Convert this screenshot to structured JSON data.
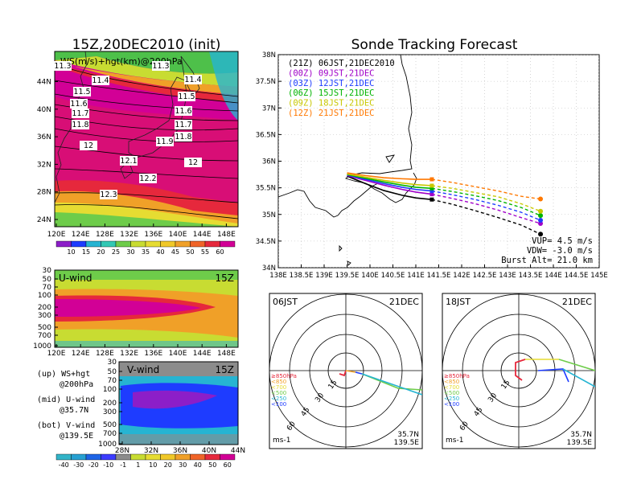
{
  "left_title": "15Z,20DEC2010 (init)",
  "right_title": "Sonde Tracking Forecast",
  "top_map": {
    "label": "WS(m/s)+hgt(km)@200hPa",
    "xticks": [
      "120E",
      "124E",
      "128E",
      "132E",
      "136E",
      "140E",
      "144E",
      "148E"
    ],
    "yticks": [
      "24N",
      "28N",
      "32N",
      "36N",
      "40N",
      "44N"
    ],
    "contour_labels": [
      "11.3",
      "11.3",
      "11.4",
      "11.4",
      "11.5",
      "11.5",
      "11.6",
      "11.6",
      "11.7",
      "11.7",
      "11.8",
      "11.8",
      "11.9",
      "12",
      "12",
      "12.1",
      "12.2",
      "12.3"
    ],
    "colorbar": [
      "10",
      "15",
      "20",
      "25",
      "30",
      "35",
      "40",
      "45",
      "50",
      "55",
      "60"
    ]
  },
  "mid_panel": {
    "label": "U-wind",
    "time": "15Z",
    "yticks": [
      "30",
      "50",
      "70",
      "100",
      "200",
      "300",
      "500",
      "700",
      "1000"
    ],
    "xticks": [
      "120E",
      "124E",
      "128E",
      "132E",
      "136E",
      "140E",
      "144E",
      "148E"
    ]
  },
  "bot_panel": {
    "label": "V-wind",
    "time": "15Z",
    "yticks": [
      "30",
      "50",
      "70",
      "100",
      "200",
      "300",
      "500",
      "700",
      "1000"
    ],
    "xticks": [
      "28N",
      "32N",
      "36N",
      "40N",
      "44N"
    ],
    "colorbar": [
      "-40",
      "-30",
      "-20",
      "-10",
      "-1",
      "1",
      "10",
      "20",
      "30",
      "40",
      "50",
      "60"
    ]
  },
  "legend_notes": [
    "(up) WS+hgt",
    "@200hPa",
    "(mid) U-wind",
    "@35.7N",
    "(bot) V-wind",
    "@139.5E"
  ],
  "chart_data": {
    "type": "line",
    "title": "Sonde Tracking Forecast",
    "xlabel": "",
    "ylabel": "",
    "xlim": [
      138.0,
      145.0
    ],
    "ylim": [
      34.0,
      38.0
    ],
    "xticks": [
      "138E",
      "138.5E",
      "139E",
      "139.5E",
      "140E",
      "140.5E",
      "141E",
      "141.5E",
      "142E",
      "142.5E",
      "143E",
      "143.5E",
      "144E",
      "144.5E",
      "145E"
    ],
    "yticks": [
      "34N",
      "34.5N",
      "35N",
      "35.5N",
      "36N",
      "36.5N",
      "37N",
      "37.5N",
      "38N"
    ],
    "series": [
      {
        "name": "(21Z) 06JST,21DEC2010",
        "color": "#000000",
        "lon": [
          139.5,
          139.9,
          140.3,
          140.7,
          141.0,
          141.35,
          141.8,
          142.3,
          142.8,
          143.3,
          143.72
        ],
        "lat": [
          35.72,
          35.58,
          35.45,
          35.36,
          35.31,
          35.28,
          35.19,
          35.07,
          34.94,
          34.8,
          34.63
        ]
      },
      {
        "name": "(00Z) 09JST,21DEC",
        "color": "#a000c8",
        "lon": [
          139.5,
          139.9,
          140.3,
          140.7,
          141.0,
          141.35,
          141.8,
          142.3,
          142.8,
          143.3,
          143.72
        ],
        "lat": [
          35.73,
          35.64,
          35.55,
          35.47,
          35.42,
          35.38,
          35.3,
          35.2,
          35.08,
          34.94,
          34.83
        ]
      },
      {
        "name": "(03Z) 12JST,21DEC",
        "color": "#1e3cff",
        "lon": [
          139.5,
          139.9,
          140.3,
          140.7,
          141.0,
          141.35,
          141.8,
          142.3,
          142.8,
          143.3,
          143.72
        ],
        "lat": [
          35.74,
          35.66,
          35.58,
          35.51,
          35.47,
          35.44,
          35.37,
          35.28,
          35.17,
          35.04,
          34.89
        ]
      },
      {
        "name": "(06Z) 15JST,21DEC",
        "color": "#00b400",
        "lon": [
          139.5,
          139.9,
          140.3,
          140.7,
          141.0,
          141.35,
          141.8,
          142.3,
          142.8,
          143.3,
          143.72
        ],
        "lat": [
          35.75,
          35.68,
          35.61,
          35.55,
          35.51,
          35.49,
          35.43,
          35.35,
          35.26,
          35.13,
          34.98
        ]
      },
      {
        "name": "(09Z) 18JST,21DEC",
        "color": "#c8c800",
        "lon": [
          139.5,
          139.9,
          140.3,
          140.7,
          141.0,
          141.35,
          141.8,
          142.3,
          142.8,
          143.3,
          143.72
        ],
        "lat": [
          35.76,
          35.7,
          35.64,
          35.59,
          35.56,
          35.54,
          35.49,
          35.41,
          35.33,
          35.2,
          35.06
        ]
      },
      {
        "name": "(12Z) 21JST,21DEC",
        "color": "#ff7800",
        "lon": [
          139.5,
          139.9,
          140.3,
          140.7,
          141.0,
          141.35,
          141.8,
          142.3,
          142.8,
          143.3,
          143.72
        ],
        "lat": [
          35.78,
          35.73,
          35.69,
          35.67,
          35.66,
          35.66,
          35.6,
          35.52,
          35.44,
          35.34,
          35.29
        ]
      }
    ],
    "params": [
      "VUP=  4.5 m/s",
      "VDW= -3.0 m/s",
      "Burst Alt= 21.0 km"
    ]
  },
  "polar_left": {
    "time": "06JST",
    "date": "21DEC",
    "rings": [
      "15",
      "30",
      "45",
      "60"
    ],
    "levels": [
      "≥850hPa",
      "<850",
      "<700",
      "<500",
      "<250",
      "<100"
    ],
    "units": "ms-1",
    "lat": "35.7N",
    "lon": "139.5E"
  },
  "polar_right": {
    "time": "18JST",
    "date": "21DEC",
    "rings": [
      "15",
      "30",
      "45",
      "60"
    ],
    "levels": [
      "≥850hPa",
      "<850",
      "<700",
      "<500",
      "<250",
      "<100"
    ],
    "units": "ms-1",
    "lat": "35.7N",
    "lon": "139.5E"
  },
  "colors": {
    "magenta": "#d20096",
    "red": "#e6283c",
    "orange": "#f0a028",
    "yellow": "#e6dc32",
    "green": "#6ecc4a",
    "cyan": "#26b4d2",
    "blue": "#1e3cff",
    "purple": "#8c1ec8"
  }
}
